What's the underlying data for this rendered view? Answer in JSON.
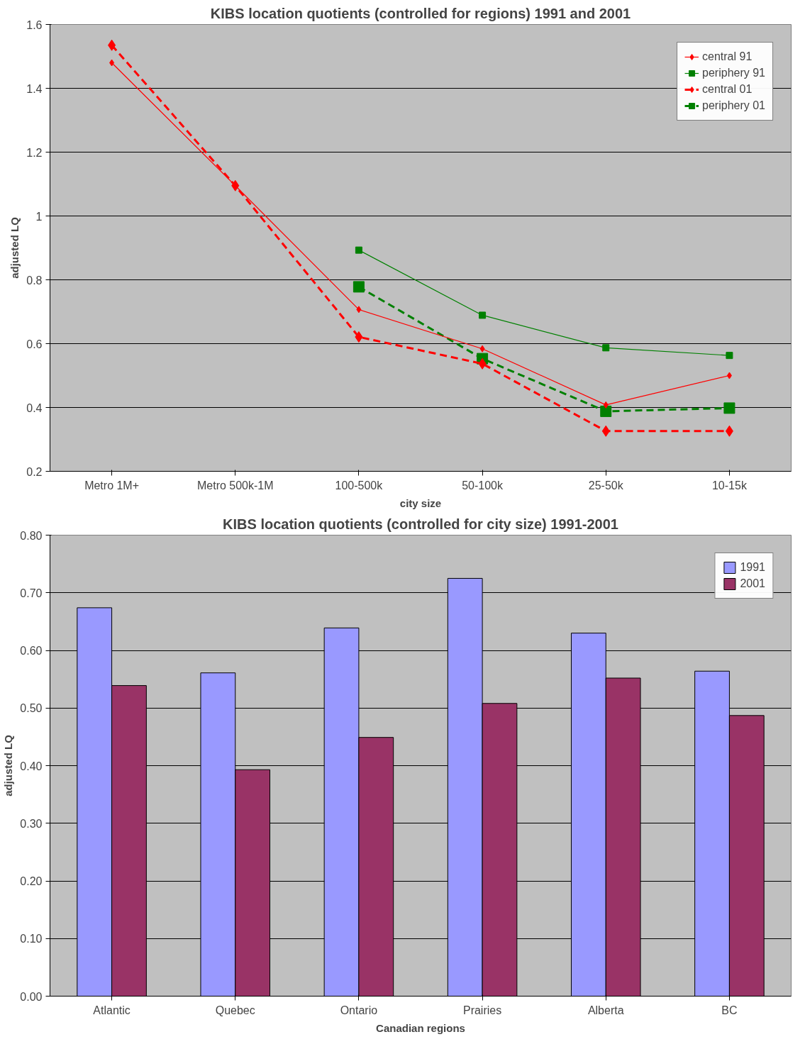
{
  "chart_data": [
    {
      "type": "line",
      "title": "KIBS location quotients (controlled for regions) 1991 and 2001",
      "xlabel": "city size",
      "ylabel": "adjusted LQ",
      "categories": [
        "Metro 1M+",
        "Metro 500k-1M",
        "100-500k",
        "50-100k",
        "25-50k",
        "10-15k"
      ],
      "ylim": [
        0.2,
        1.6
      ],
      "yticks": [
        {
          "value": 0.2,
          "label": "0.2"
        },
        {
          "value": 0.4,
          "label": "0.4"
        },
        {
          "value": 0.6,
          "label": "0.6"
        },
        {
          "value": 0.8,
          "label": "0.8"
        },
        {
          "value": 1,
          "label": "1"
        },
        {
          "value": 1.2,
          "label": "1.2"
        },
        {
          "value": 1.4,
          "label": "1.4"
        },
        {
          "value": 1.6,
          "label": "1.6"
        }
      ],
      "grid": "y",
      "legend": "top right",
      "series": [
        {
          "name": "central 91",
          "color": "#ff0000",
          "marker": "diamond",
          "line_style": "solid",
          "values": [
            1.48,
            1.095,
            0.707,
            0.584,
            0.408,
            0.5
          ]
        },
        {
          "name": "periphery 91",
          "color": "#008000",
          "marker": "square",
          "line_style": "solid",
          "values": [
            null,
            null,
            0.893,
            0.689,
            0.587,
            0.563
          ]
        },
        {
          "name": "central 01",
          "color": "#ff0000",
          "marker": "diamond",
          "line_style": "dashed",
          "values": [
            1.535,
            1.095,
            0.621,
            0.537,
            0.326,
            0.326
          ]
        },
        {
          "name": "periphery 01",
          "color": "#008000",
          "marker": "square",
          "line_style": "dashed",
          "values": [
            null,
            null,
            0.778,
            0.553,
            0.388,
            0.398
          ]
        }
      ]
    },
    {
      "type": "bar",
      "title": "KIBS location quotients (controlled for city size) 1991-2001",
      "xlabel": "Canadian regions",
      "ylabel": "adjusted LQ",
      "categories": [
        "Atlantic",
        "Quebec",
        "Ontario",
        "Prairies",
        "Alberta",
        "BC"
      ],
      "ylim": [
        0,
        0.8
      ],
      "yticks": [
        {
          "value": 0,
          "label": "0.00"
        },
        {
          "value": 0.1,
          "label": "0.10"
        },
        {
          "value": 0.2,
          "label": "0.20"
        },
        {
          "value": 0.3,
          "label": "0.30"
        },
        {
          "value": 0.4,
          "label": "0.40"
        },
        {
          "value": 0.5,
          "label": "0.50"
        },
        {
          "value": 0.6,
          "label": "0.60"
        },
        {
          "value": 0.7,
          "label": "0.70"
        },
        {
          "value": 0.8,
          "label": "0.80"
        }
      ],
      "grid": "y",
      "legend": "top right",
      "series": [
        {
          "name": "1991",
          "color": "#9999ff",
          "values": [
            0.674,
            0.561,
            0.639,
            0.725,
            0.63,
            0.564
          ]
        },
        {
          "name": "2001",
          "color": "#993366",
          "values": [
            0.539,
            0.393,
            0.449,
            0.508,
            0.552,
            0.487
          ]
        }
      ]
    }
  ]
}
